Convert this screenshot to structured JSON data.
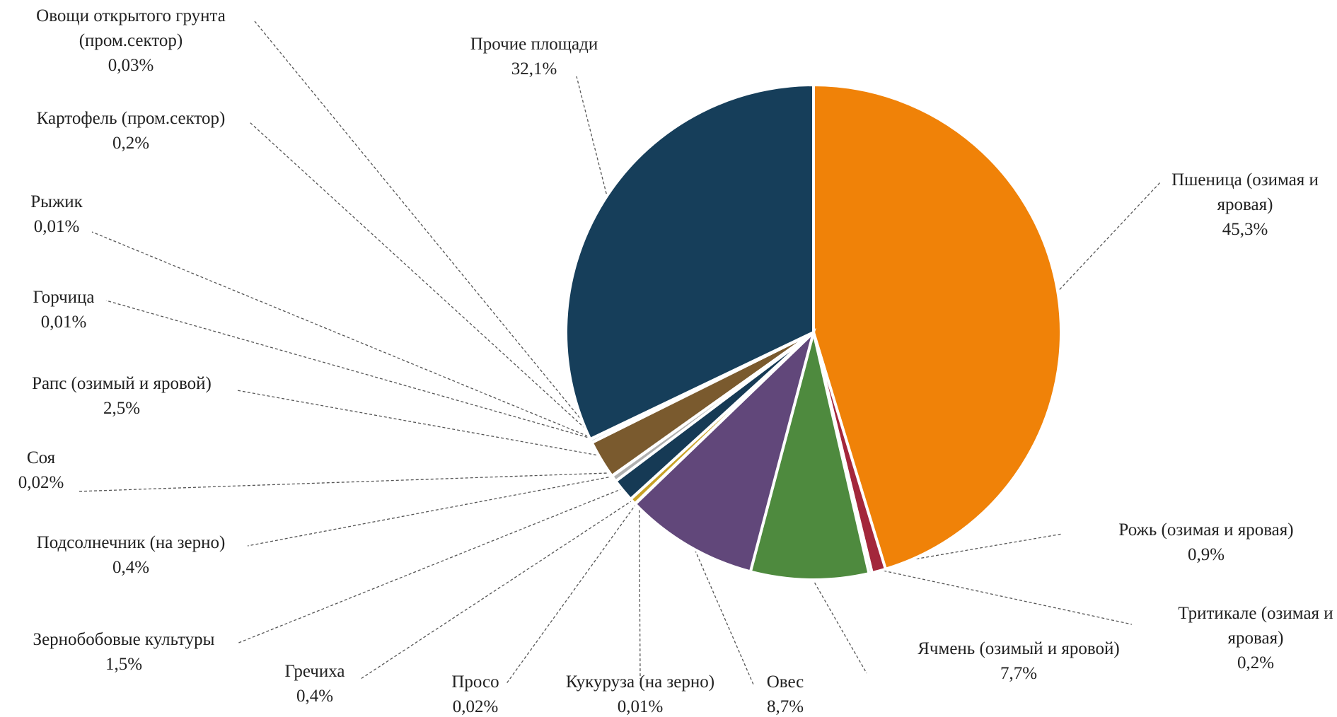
{
  "chart_data": {
    "type": "pie",
    "start": "top, clockwise",
    "slices": [
      {
        "name": "Пшеница (озимая и яровая)",
        "value_label": "45,3%",
        "value": 45.3,
        "color": "#F08208"
      },
      {
        "name": "Рожь (озимая и яровая)",
        "value_label": "0,9%",
        "value": 0.9,
        "color": "#A3273B"
      },
      {
        "name": "Тритикале (озимая и яровая)",
        "value_label": "0,2%",
        "value": 0.2,
        "color": "#C8C8C8"
      },
      {
        "name": "Ячмень (озимый и яровой)",
        "value_label": "7,7%",
        "value": 7.7,
        "color": "#4E8A3E"
      },
      {
        "name": "Овес",
        "value_label": "8,7%",
        "value": 8.7,
        "color": "#61477A"
      },
      {
        "name": "Кукуруза  (на зерно)",
        "value_label": "0,01%",
        "value": 0.01,
        "color": "#2E5D80"
      },
      {
        "name": "Просо",
        "value_label": "0,02%",
        "value": 0.02,
        "color": "#7A9A60"
      },
      {
        "name": "Гречиха",
        "value_label": "0,4%",
        "value": 0.4,
        "color": "#C9A227"
      },
      {
        "name": "Зернобобовые культуры",
        "value_label": "1,5%",
        "value": 1.5,
        "color": "#163A55"
      },
      {
        "name": "Подсолнечник (на зерно)",
        "value_label": "0,4%",
        "value": 0.4,
        "color": "#B0B0B0"
      },
      {
        "name": "Соя",
        "value_label": "0,02%",
        "value": 0.02,
        "color": "#5B7FA6"
      },
      {
        "name": "Рапс (озимый и яровой)",
        "value_label": "2,5%",
        "value": 2.5,
        "color": "#7A5A2E"
      },
      {
        "name": "Горчица",
        "value_label": "0,01%",
        "value": 0.01,
        "color": "#D9A441"
      },
      {
        "name": "Рыжик",
        "value_label": "0,01%",
        "value": 0.01,
        "color": "#8C6239"
      },
      {
        "name": "Картофель (пром.сектор)",
        "value_label": "0,2%",
        "value": 0.2,
        "color": "#9E9E9E"
      },
      {
        "name": "Овощи открытого грунта (пром.сектор)",
        "value_label": "0,03%",
        "value": 0.03,
        "color": "#6B8E23"
      },
      {
        "name": "Прочие площади",
        "value_label": "32,1%",
        "value": 32.1,
        "color": "#163E5A"
      }
    ]
  }
}
